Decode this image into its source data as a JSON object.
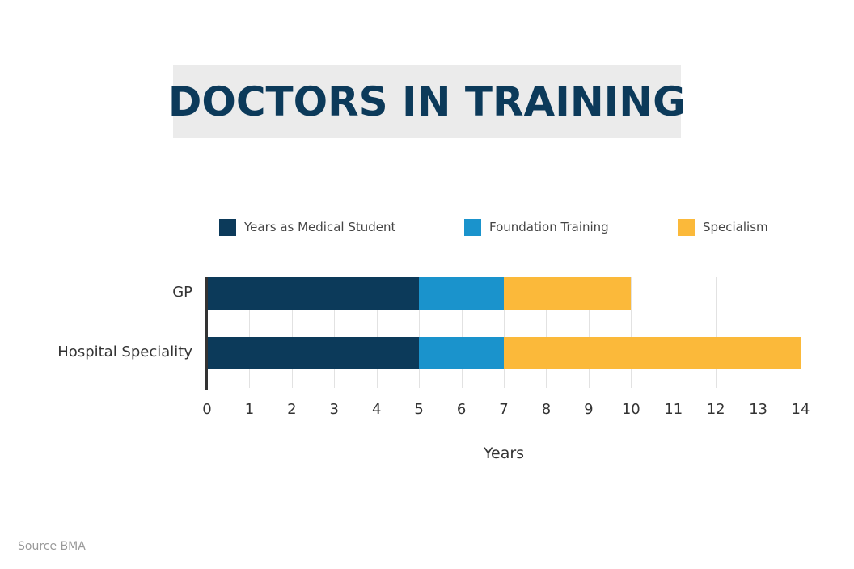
{
  "title": "DOCTORS IN TRAINING",
  "legend": [
    {
      "label": "Years as Medical Student",
      "color": "#0c3a5a"
    },
    {
      "label": "Foundation Training",
      "color": "#1a93cc"
    },
    {
      "label": "Specialism",
      "color": "#fbb93a"
    }
  ],
  "x_axis": {
    "label": "Years",
    "ticks": [
      "0",
      "1",
      "2",
      "3",
      "4",
      "5",
      "6",
      "7",
      "8",
      "9",
      "10",
      "11",
      "12",
      "13",
      "14"
    ]
  },
  "source": "Source BMA",
  "chart_data": {
    "type": "bar",
    "orientation": "horizontal",
    "stacked": true,
    "title": "DOCTORS IN TRAINING",
    "categories": [
      "GP",
      "Hospital Speciality"
    ],
    "series": [
      {
        "name": "Years as Medical Student",
        "color": "#0c3a5a",
        "values": [
          5,
          5
        ]
      },
      {
        "name": "Foundation Training",
        "color": "#1a93cc",
        "values": [
          2,
          2
        ]
      },
      {
        "name": "Specialism",
        "color": "#fbb93a",
        "values": [
          3,
          7
        ]
      }
    ],
    "totals": [
      10,
      14
    ],
    "xlabel": "Years",
    "ylabel": "",
    "xlim": [
      0,
      14
    ],
    "xticks": [
      0,
      1,
      2,
      3,
      4,
      5,
      6,
      7,
      8,
      9,
      10,
      11,
      12,
      13,
      14
    ],
    "grid": "vertical",
    "legend_position": "top",
    "annotations": [
      "Source BMA"
    ]
  }
}
